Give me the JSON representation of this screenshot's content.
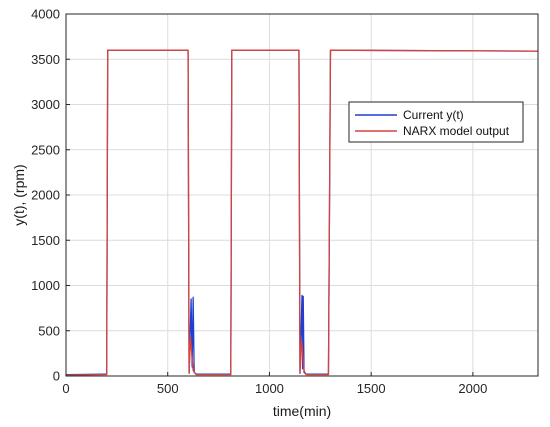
{
  "chart_data": {
    "type": "line",
    "xlabel": "time(min)",
    "ylabel": "y(t), (rpm)",
    "xlim": [
      0,
      2320
    ],
    "ylim": [
      0,
      4000
    ],
    "xticks": [
      0,
      500,
      1000,
      1500,
      2000
    ],
    "yticks": [
      0,
      500,
      1000,
      1500,
      2000,
      2500,
      3000,
      3500,
      4000
    ],
    "grid": true,
    "legend_position": "right, upper-middle",
    "series": [
      {
        "name": "Current y(t)",
        "color": "#1f3fd0",
        "x": [
          0,
          190,
          200,
          205,
          595,
          600,
          605,
          615,
          620,
          625,
          630,
          640,
          800,
          810,
          815,
          1140,
          1145,
          1150,
          1160,
          1163,
          1166,
          1170,
          1180,
          1285,
          1290,
          1300,
          2320
        ],
        "y": [
          15,
          20,
          20,
          3600,
          3600,
          3600,
          30,
          850,
          100,
          870,
          40,
          20,
          20,
          20,
          3600,
          3600,
          3600,
          30,
          890,
          80,
          880,
          40,
          20,
          20,
          20,
          3600,
          3590
        ]
      },
      {
        "name": "NARX model output",
        "color": "#d9423a",
        "x": [
          0,
          190,
          200,
          205,
          595,
          600,
          605,
          612,
          625,
          640,
          800,
          810,
          815,
          1140,
          1145,
          1150,
          1158,
          1170,
          1180,
          1285,
          1290,
          1300,
          2320
        ],
        "y": [
          10,
          15,
          15,
          3600,
          3600,
          3600,
          30,
          420,
          60,
          15,
          15,
          15,
          3600,
          3600,
          3600,
          30,
          400,
          60,
          15,
          15,
          15,
          3600,
          3590
        ]
      }
    ]
  }
}
